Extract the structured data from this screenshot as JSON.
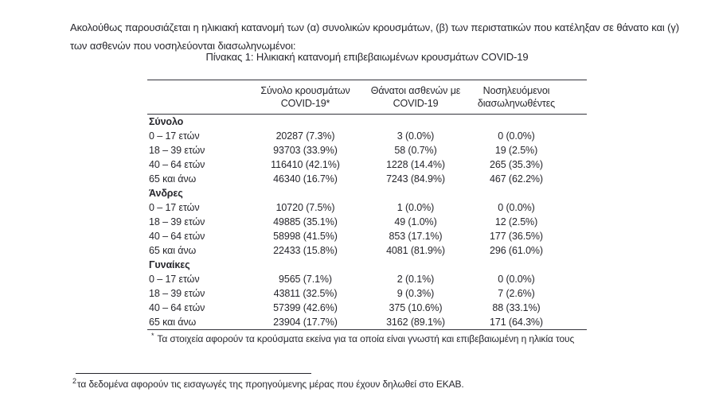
{
  "document": {
    "intro": "Ακολούθως παρουσιάζεται η ηλικιακή κατανομή των (α) συνολικών κρουσμάτων, (β) των περιστατικών που κατέληξαν σε θάνατο και (γ) των ασθενών που νοσηλεύονται διασωληνωμένοι:",
    "table": {
      "title": "Πίνακας 1: Ηλικιακή κατανομή επιβεβαιωμένων κρουσμάτων COVID-19",
      "col_headers": [
        "Σύνολο κρουσμάτων COVID-19*",
        "Θάνατοι ασθενών με COVID-19",
        "Νοσηλευόμενοι διασωληνωθέντες"
      ],
      "sections": [
        {
          "label": "Σύνολο",
          "rows": [
            {
              "age": "0 – 17 ετών",
              "cases": "20287 (7.3%)",
              "deaths": "3 (0.0%)",
              "intubated": "0 (0.0%)"
            },
            {
              "age": "18 – 39 ετών",
              "cases": "93703 (33.9%)",
              "deaths": "58 (0.7%)",
              "intubated": "19 (2.5%)"
            },
            {
              "age": "40 – 64 ετών",
              "cases": "116410 (42.1%)",
              "deaths": "1228 (14.4%)",
              "intubated": "265 (35.3%)"
            },
            {
              "age": "65 και άνω",
              "cases": "46340 (16.7%)",
              "deaths": "7243 (84.9%)",
              "intubated": "467 (62.2%)"
            }
          ]
        },
        {
          "label": "Άνδρες",
          "rows": [
            {
              "age": "0 – 17 ετών",
              "cases": "10720 (7.5%)",
              "deaths": "1 (0.0%)",
              "intubated": "0 (0.0%)"
            },
            {
              "age": "18 – 39 ετών",
              "cases": "49885 (35.1%)",
              "deaths": "49 (1.0%)",
              "intubated": "12 (2.5%)"
            },
            {
              "age": "40 – 64 ετών",
              "cases": "58998 (41.5%)",
              "deaths": "853 (17.1%)",
              "intubated": "177 (36.5%)"
            },
            {
              "age": "65 και άνω",
              "cases": "22433 (15.8%)",
              "deaths": "4081 (81.9%)",
              "intubated": "296 (61.0%)"
            }
          ]
        },
        {
          "label": "Γυναίκες",
          "rows": [
            {
              "age": "0 – 17 ετών",
              "cases": "9565 (7.1%)",
              "deaths": "2 (0.1%)",
              "intubated": "0 (0.0%)"
            },
            {
              "age": "18 – 39 ετών",
              "cases": "43811 (32.5%)",
              "deaths": "9 (0.3%)",
              "intubated": "7 (2.6%)"
            },
            {
              "age": "40 – 64 ετών",
              "cases": "57399 (42.6%)",
              "deaths": "375 (10.6%)",
              "intubated": "88 (33.1%)"
            },
            {
              "age": "65 και άνω",
              "cases": "23904 (17.7%)",
              "deaths": "3162 (89.1%)",
              "intubated": "171 (64.3%)"
            }
          ]
        }
      ],
      "footnote_marker": "*",
      "footnote": "Τα στοιχεία αφορούν τα κρούσματα εκείνα για τα οποία είναι γνωστή και επιβεβαιωμένη η ηλικία τους"
    },
    "footer_note": {
      "marker": "2",
      "text": "τα δεδομένα αφορούν τις εισαγωγές της προηγούμενης μέρας που έχουν δηλωθεί στο ΕΚΑΒ."
    },
    "colors": {
      "text": "#26262c",
      "rule": "#33333b",
      "background": "#ffffff"
    }
  }
}
